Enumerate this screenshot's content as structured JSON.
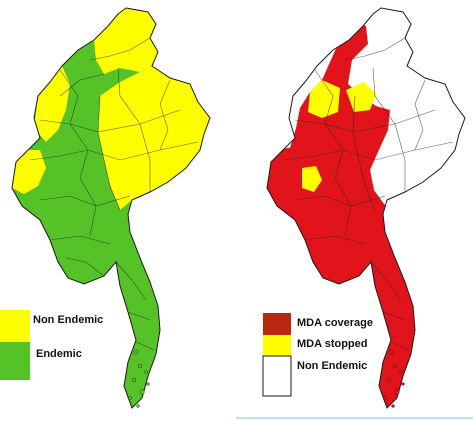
{
  "colors": {
    "endemic_green": "#55c227",
    "non_endemic_yellow": "#ffff00",
    "mda_coverage_red": "#e0141a",
    "mda_coverage_legend": "#b8280e",
    "mda_stopped_yellow": "#ffff00",
    "non_endemic_white": "#ffffff",
    "border": "#1a1a1a",
    "divider": "#7ec8e3"
  },
  "left_map": {
    "legend": [
      {
        "label": "Non Endemic",
        "color": "#ffff00"
      },
      {
        "label": "Endemic",
        "color": "#55c227"
      }
    ]
  },
  "right_map": {
    "legend": [
      {
        "label": "MDA coverage",
        "color": "#b8280e"
      },
      {
        "label": "MDA stopped",
        "color": "#ffff00"
      },
      {
        "label": "Non Endemic",
        "color": "#ffffff"
      }
    ]
  }
}
